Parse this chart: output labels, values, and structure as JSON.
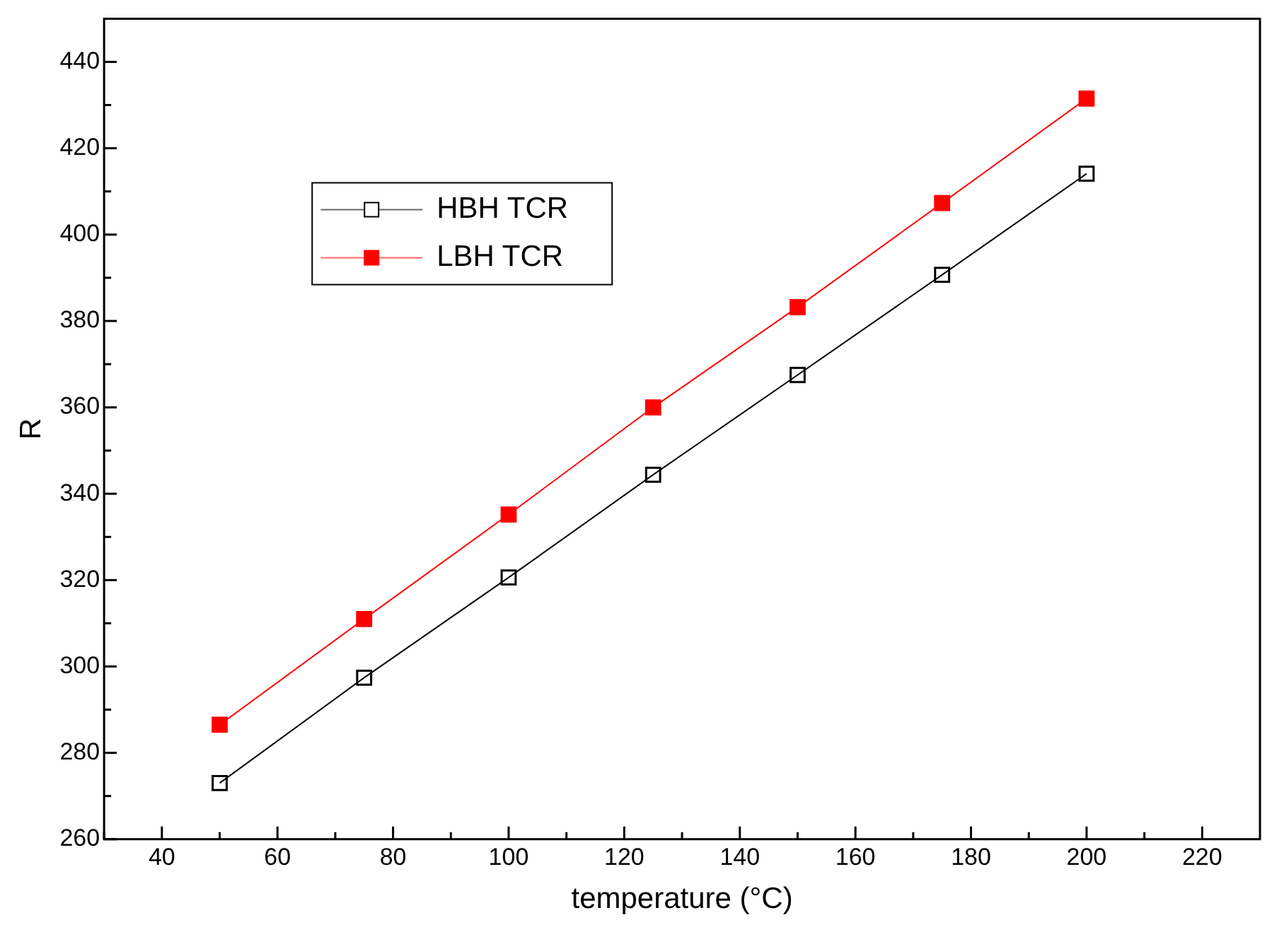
{
  "chart_data": {
    "type": "line",
    "xlabel": "temperature (°C)",
    "ylabel": "R",
    "x": [
      50,
      75,
      100,
      125,
      150,
      175,
      200
    ],
    "series": [
      {
        "name": "HBH TCR",
        "color": "#000000",
        "values": [
          273,
          297.4,
          320.6,
          344.4,
          367.5,
          390.7,
          414.1
        ]
      },
      {
        "name": "LBH TCR",
        "color": "#ff0000",
        "values": [
          286.5,
          311,
          335.2,
          360,
          383.2,
          407.3,
          431.5
        ]
      }
    ],
    "xlim": [
      30,
      230
    ],
    "xticks": [
      {
        "value": 30,
        "label": null
      },
      40,
      {
        "value": 50,
        "label": null
      },
      60,
      {
        "value": 70,
        "label": null
      },
      80,
      {
        "value": 90,
        "label": null
      },
      100,
      {
        "value": 110,
        "label": null
      },
      120,
      {
        "value": 130,
        "label": null
      },
      140,
      {
        "value": 150,
        "label": null
      },
      160,
      {
        "value": 170,
        "label": null
      },
      180,
      {
        "value": 190,
        "label": null
      },
      200,
      {
        "value": 210,
        "label": null
      },
      220
    ],
    "ylim": [
      260,
      450
    ],
    "yticks": [
      260,
      {
        "value": 270,
        "label": null
      },
      280,
      {
        "value": 290,
        "label": null
      },
      300,
      {
        "value": 310,
        "label": null
      },
      320,
      {
        "value": 330,
        "label": null
      },
      340,
      {
        "value": 350,
        "label": null
      },
      360,
      {
        "value": 370,
        "label": null
      },
      380,
      {
        "value": 390,
        "label": null
      },
      400,
      {
        "value": 410,
        "label": null
      },
      420,
      {
        "value": 430,
        "label": null
      },
      440
    ],
    "grid": false,
    "legend": "top left",
    "marker": "square",
    "line_style": "solid"
  }
}
